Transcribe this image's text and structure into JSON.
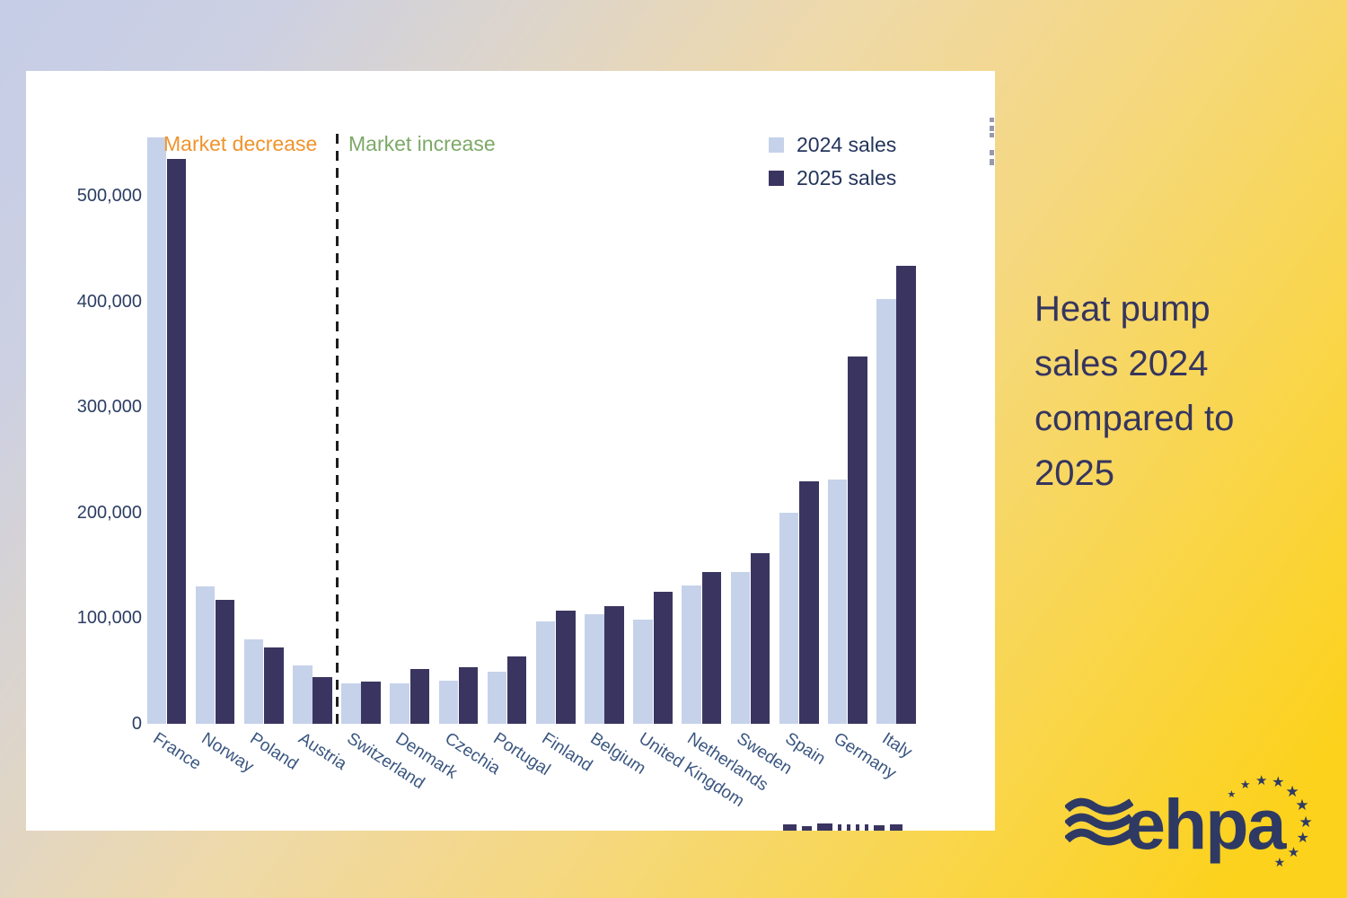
{
  "side_panel": {
    "title_lines": [
      "Heat pump",
      "sales 2024",
      "compared to",
      "2025"
    ],
    "title_full": "Heat pump sales 2024 compared to 2025"
  },
  "logo": {
    "text": "ehpa"
  },
  "chart_panel": {
    "annotations": {
      "decrease_label": "Market decrease",
      "increase_label": "Market increase",
      "decrease_color": "#f0932c",
      "increase_color": "#7ca967"
    },
    "legend": [
      {
        "label": "2024 sales",
        "color": "#c6d2ea"
      },
      {
        "label": "2025 sales",
        "color": "#3a3560"
      }
    ]
  },
  "chart_data": {
    "type": "bar",
    "title": "",
    "xlabel": "",
    "ylabel": "",
    "grid": false,
    "legend_position": "upper right",
    "ylim": [
      0,
      560000
    ],
    "yticks": [
      0,
      100000,
      200000,
      300000,
      400000,
      500000
    ],
    "ytick_labels": [
      "0",
      "100,000",
      "200,000",
      "300,000",
      "400,000",
      "500,000"
    ],
    "divider_after_category": "Austria",
    "categories": [
      "France",
      "Norway",
      "Poland",
      "Austria",
      "Switzerland",
      "Denmark",
      "Czechia",
      "Portugal",
      "Finland",
      "Belgium",
      "United Kingdom",
      "Netherlands",
      "Sweden",
      "Spain",
      "Germany",
      "Italy"
    ],
    "series": [
      {
        "name": "2024 sales",
        "color": "#c6d2ea",
        "values": [
          555000,
          130000,
          80000,
          55000,
          38000,
          38000,
          41000,
          49000,
          97000,
          104000,
          99000,
          131000,
          144000,
          200000,
          231000,
          402000
        ]
      },
      {
        "name": "2025 sales",
        "color": "#3a3560",
        "values": [
          535000,
          117000,
          72000,
          44000,
          40000,
          52000,
          54000,
          64000,
          107000,
          111000,
          125000,
          144000,
          162000,
          230000,
          348000,
          434000
        ]
      }
    ]
  }
}
